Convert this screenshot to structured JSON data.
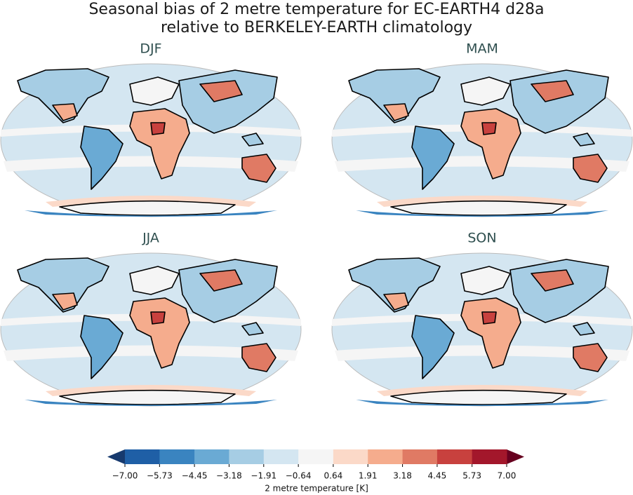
{
  "title": [
    "Seasonal bias of 2 metre temperature for EC-EARTH4 d28a",
    "relative to BERKELEY-EARTH climatology"
  ],
  "panels": [
    {
      "title": "DJF"
    },
    {
      "title": "MAM"
    },
    {
      "title": "JJA"
    },
    {
      "title": "SON"
    }
  ],
  "colorbar": {
    "label": "2 metre temperature [K]",
    "ticks": [
      {
        "value": -7,
        "label": "−7.00"
      },
      {
        "value": -5.73,
        "label": "−5.73"
      },
      {
        "value": -4.45,
        "label": "−4.45"
      },
      {
        "value": -3.18,
        "label": "−3.18"
      },
      {
        "value": -1.91,
        "label": "−1.91"
      },
      {
        "value": -0.64,
        "label": "−0.64"
      },
      {
        "value": 0.64,
        "label": "0.64"
      },
      {
        "value": 1.91,
        "label": "1.91"
      },
      {
        "value": 3.18,
        "label": "3.18"
      },
      {
        "value": 4.45,
        "label": "4.45"
      },
      {
        "value": 5.73,
        "label": "5.73"
      },
      {
        "value": 7,
        "label": "7.00"
      }
    ],
    "colors": [
      "#1f5fa6",
      "#3a84c0",
      "#6aaad4",
      "#a6cde4",
      "#d4e6f1",
      "#f5f5f5",
      "#fbd9c8",
      "#f5ac8d",
      "#e07a64",
      "#c8413e",
      "#a3172b"
    ],
    "under_color": "#173a6e",
    "over_color": "#67001f"
  }
}
